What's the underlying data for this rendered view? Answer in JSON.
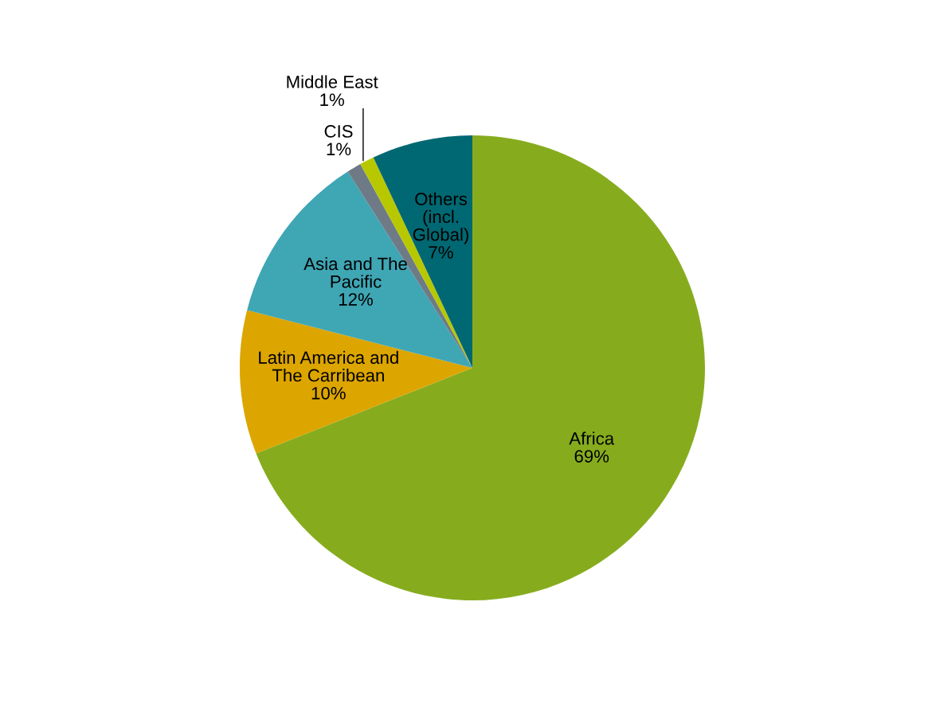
{
  "chart_data": {
    "type": "pie",
    "categories": [
      "Africa",
      "Latin America and\nThe Carribean",
      "Asia and The\nPacific",
      "CIS",
      "Middle East",
      "Others\n(incl.\nGlobal)"
    ],
    "values": [
      69,
      10,
      12,
      1,
      1,
      7
    ],
    "value_labels": [
      "69%",
      "10%",
      "12%",
      "1%",
      "1%",
      "7%"
    ],
    "colors": [
      "#86ac1e",
      "#dca500",
      "#3fa6b4",
      "#6e7b87",
      "#b7c800",
      "#006872"
    ],
    "legend": false
  }
}
